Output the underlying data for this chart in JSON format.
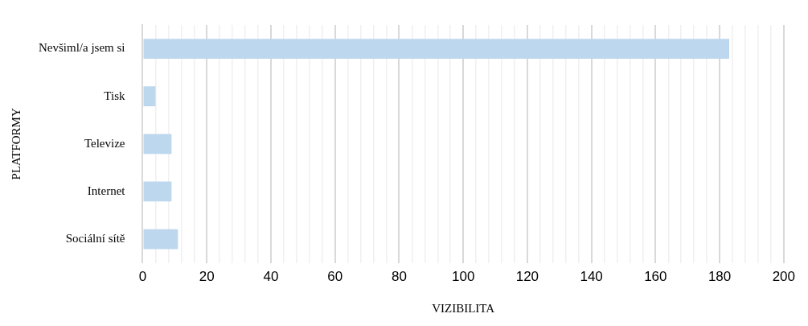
{
  "chart_data": {
    "type": "bar",
    "orientation": "horizontal",
    "xlabel": "VIZIBILITA",
    "ylabel": "PLATFORMY",
    "categories": [
      "Nevšiml/a jsem si",
      "Tisk",
      "Televize",
      "Internet",
      "Sociální sítě"
    ],
    "values": [
      183,
      4,
      9,
      9,
      11
    ],
    "color": "#bdd7ee",
    "xlim": [
      0,
      200
    ],
    "xticks": [
      0,
      {
        "value": 4,
        "label": null
      },
      {
        "value": 8,
        "label": null
      },
      {
        "value": 12,
        "label": null
      },
      {
        "value": 16,
        "label": null
      },
      20,
      {
        "value": 24,
        "label": null
      },
      {
        "value": 28,
        "label": null
      },
      {
        "value": 32,
        "label": null
      },
      {
        "value": 36,
        "label": null
      },
      40,
      {
        "value": 44,
        "label": null
      },
      {
        "value": 48,
        "label": null
      },
      {
        "value": 52,
        "label": null
      },
      {
        "value": 56,
        "label": null
      },
      60,
      {
        "value": 64,
        "label": null
      },
      {
        "value": 68,
        "label": null
      },
      {
        "value": 72,
        "label": null
      },
      {
        "value": 76,
        "label": null
      },
      80,
      {
        "value": 84,
        "label": null
      },
      {
        "value": 88,
        "label": null
      },
      {
        "value": 92,
        "label": null
      },
      {
        "value": 96,
        "label": null
      },
      100,
      {
        "value": 104,
        "label": null
      },
      {
        "value": 108,
        "label": null
      },
      {
        "value": 112,
        "label": null
      },
      {
        "value": 116,
        "label": null
      },
      120,
      {
        "value": 124,
        "label": null
      },
      {
        "value": 128,
        "label": null
      },
      {
        "value": 132,
        "label": null
      },
      {
        "value": 136,
        "label": null
      },
      140,
      {
        "value": 144,
        "label": null
      },
      {
        "value": 148,
        "label": null
      },
      {
        "value": 152,
        "label": null
      },
      {
        "value": 156,
        "label": null
      },
      160,
      {
        "value": 164,
        "label": null
      },
      {
        "value": 168,
        "label": null
      },
      {
        "value": 172,
        "label": null
      },
      {
        "value": 176,
        "label": null
      },
      180,
      {
        "value": 184,
        "label": null
      },
      {
        "value": 188,
        "label": null
      },
      {
        "value": 192,
        "label": null
      },
      {
        "value": 196,
        "label": null
      },
      200
    ],
    "grid": "x"
  }
}
